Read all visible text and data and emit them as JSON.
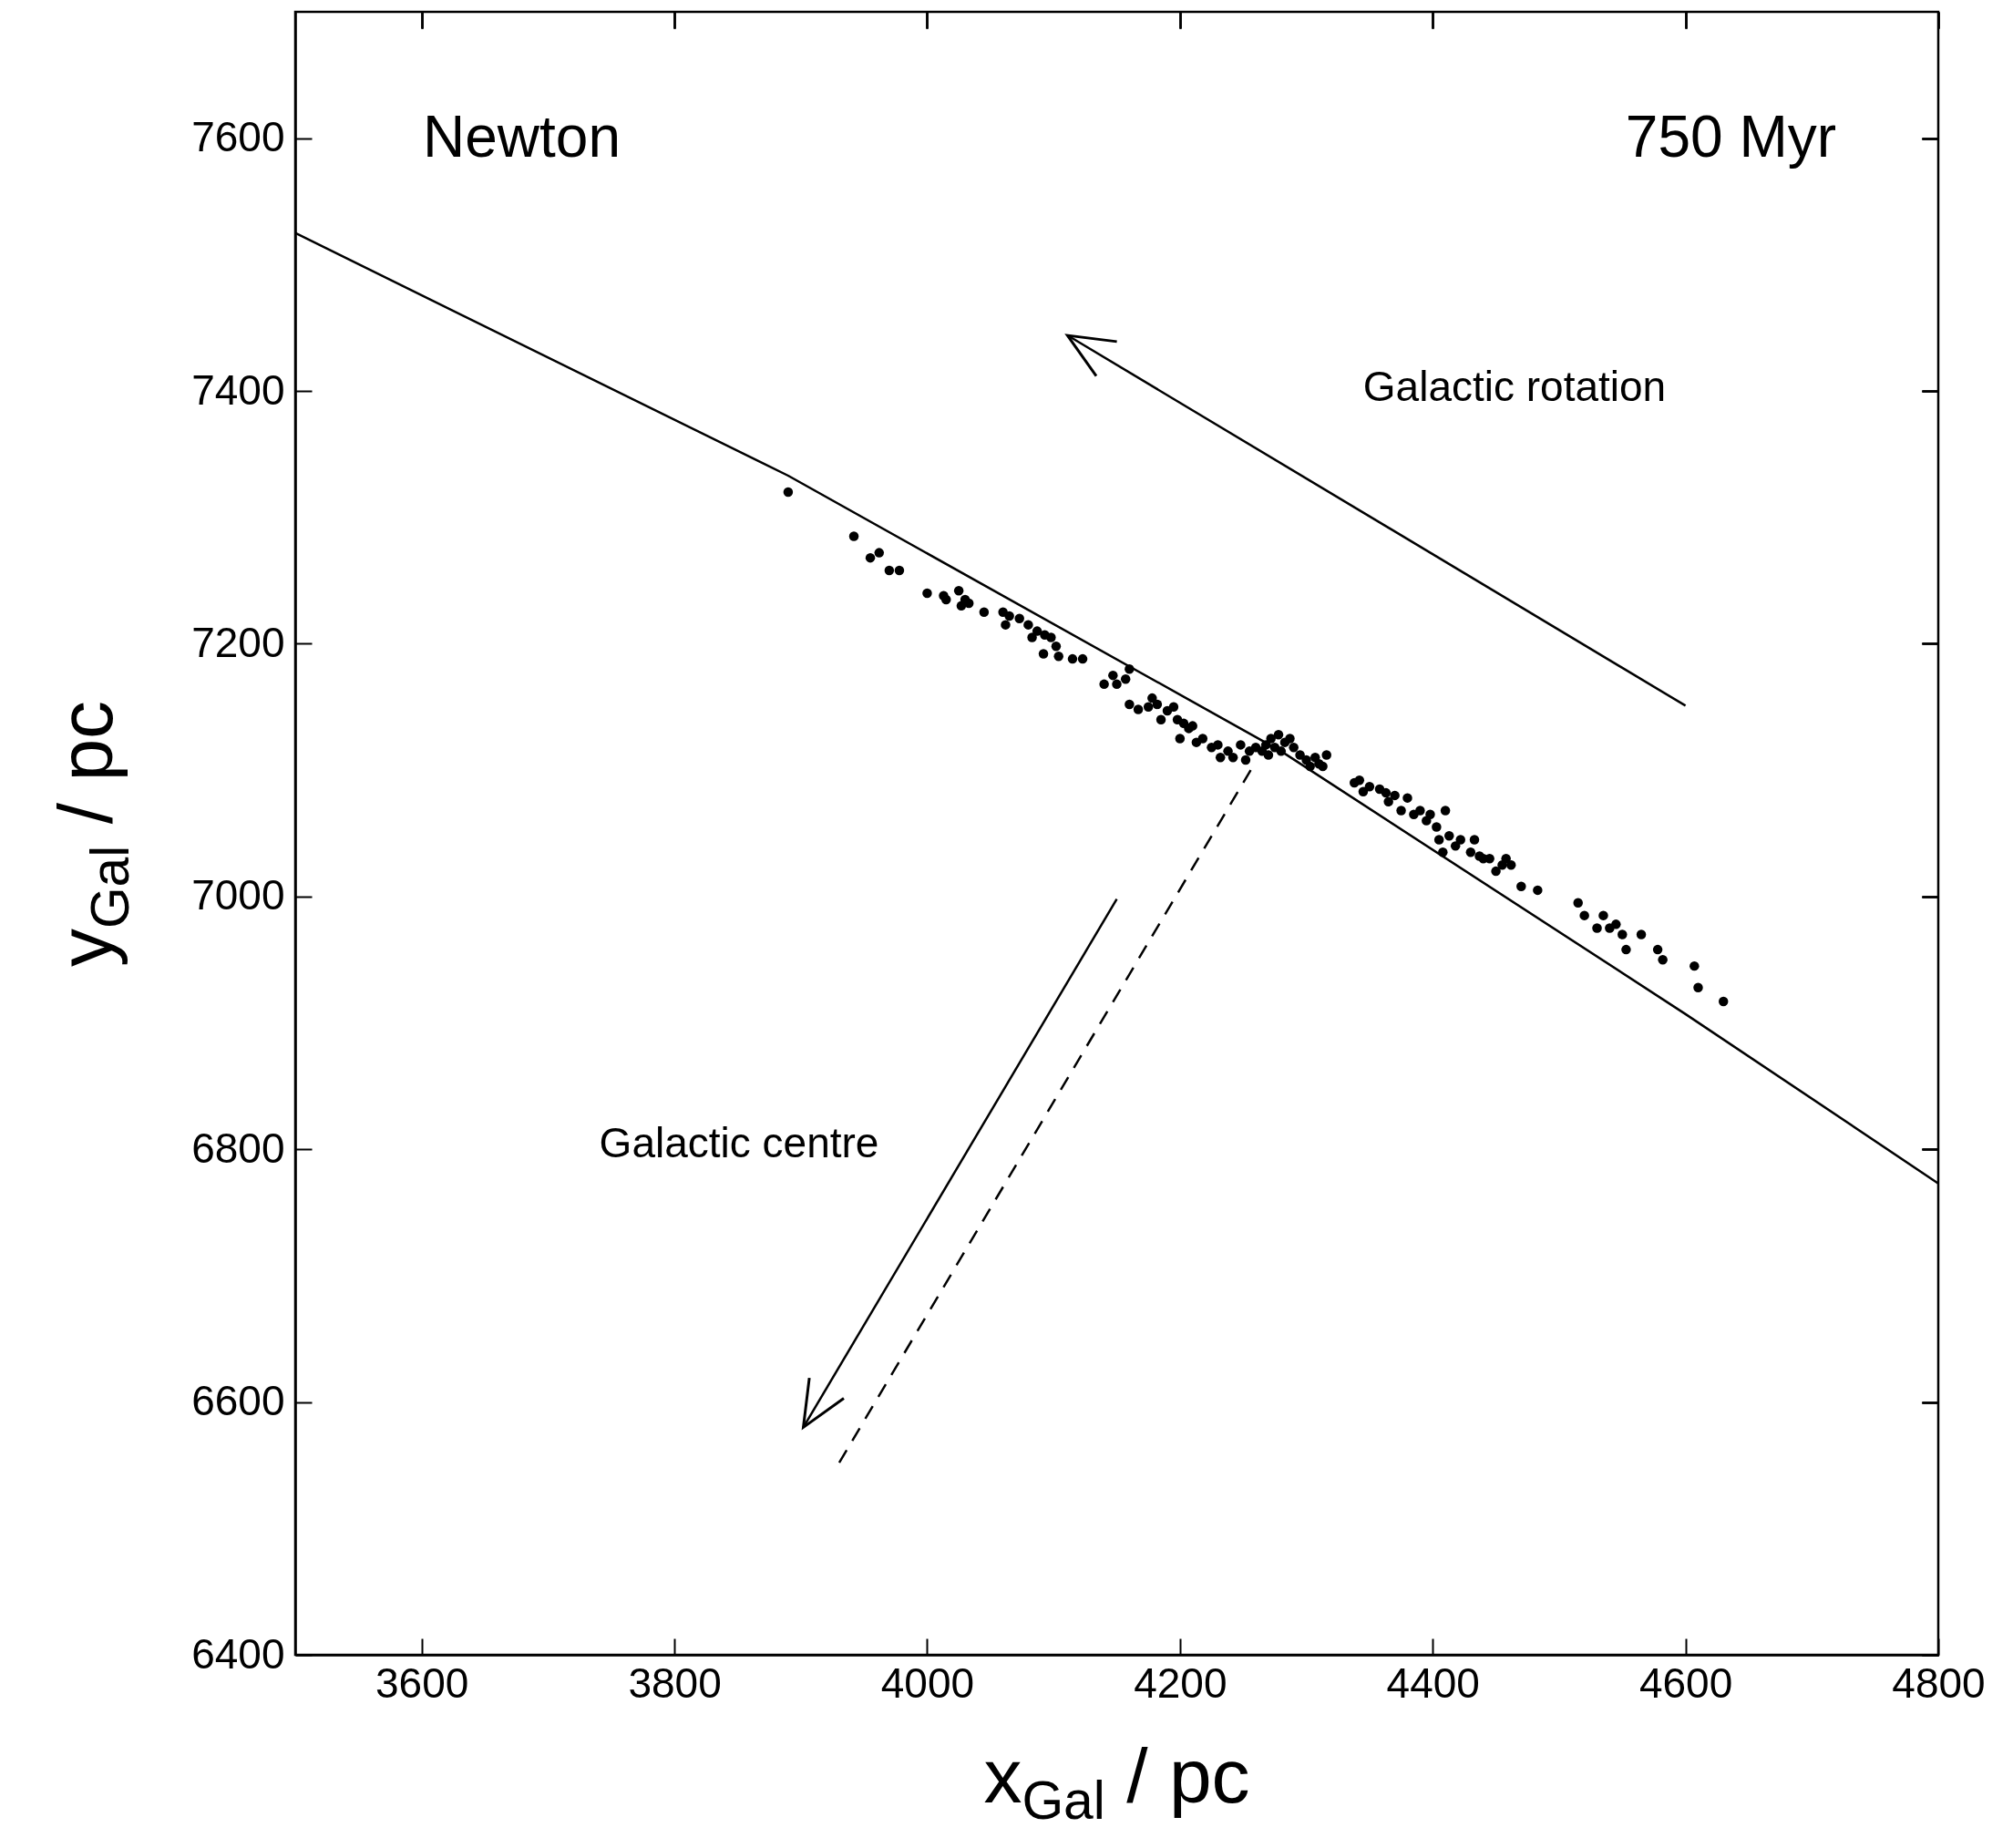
{
  "chart_data": {
    "type": "scatter",
    "xlabel": "x$_{Gal}$ / pc",
    "ylabel": "y$_{Gal}$ / pc",
    "xlim": [
      3500,
      4800
    ],
    "ylim": [
      6400,
      7700
    ],
    "xticks": [
      3600,
      3800,
      4000,
      4200,
      4400,
      4600,
      4800
    ],
    "yticks": [
      6400,
      6600,
      6800,
      7000,
      7200,
      7400,
      7600
    ],
    "grid": false,
    "annotations": [
      "Newton",
      "750 Myr",
      "Galactic rotation",
      "Galactic centre"
    ],
    "series": [
      {
        "type": "line",
        "color": "#000000",
        "marker": "none",
        "line_style": "solid",
        "x": [
          3500,
          3890,
          4280,
          4600,
          4800
        ],
        "values": [
          7525,
          7333,
          7115,
          6907,
          6773
        ]
      },
      {
        "type": "line",
        "color": "#000000",
        "marker": "none",
        "line_style": "dashed",
        "x": [
          4256,
          3928
        ],
        "values": [
          7100,
          6548
        ]
      },
      {
        "type": "line",
        "color": "#000000",
        "marker": "none",
        "line_style": "solid",
        "x": [
          4600,
          4111
        ],
        "values": [
          7151,
          7444
        ]
      },
      {
        "type": "line",
        "color": "#000000",
        "marker": "none",
        "line_style": "solid",
        "x": [
          4150,
          3902
        ],
        "values": [
          6998,
          6580
        ]
      },
      {
        "color": "#000000",
        "marker": "circle",
        "x": [
          3890,
          3942,
          3955,
          3962,
          3970,
          3978,
          4000,
          4013,
          4015,
          4025,
          4027,
          4030,
          4033,
          4045,
          4060,
          4062,
          4065,
          4073,
          4080,
          4083,
          4087,
          4092,
          4093,
          4098,
          4102,
          4104,
          4115,
          4123,
          4140,
          4147,
          4150,
          4157,
          4160,
          4160,
          4167,
          4175,
          4178,
          4182,
          4185,
          4190,
          4195,
          4198,
          4200,
          4203,
          4207,
          4210,
          4213,
          4218,
          4225,
          4230,
          4232,
          4238,
          4242,
          4248,
          4252,
          4255,
          4260,
          4265,
          4268,
          4270,
          4272,
          4275,
          4278,
          4280,
          4283,
          4287,
          4290,
          4295,
          4300,
          4303,
          4307,
          4310,
          4313,
          4316,
          4338,
          4342,
          4345,
          4350,
          4358,
          4363,
          4365,
          4370,
          4375,
          4380,
          4385,
          4390,
          4395,
          4398,
          4403,
          4405,
          4408,
          4410,
          4413,
          4418,
          4422,
          4430,
          4433,
          4437,
          4440,
          4445,
          4450,
          4455,
          4458,
          4462,
          4470,
          4483,
          4515,
          4520,
          4530,
          4535,
          4540,
          4545,
          4550,
          4553,
          4565,
          4578,
          4582,
          4607,
          4610,
          4630
        ],
        "values": [
          7320,
          7285,
          7268,
          7272,
          7258,
          7258,
          7240,
          7238,
          7235,
          7242,
          7230,
          7235,
          7232,
          7225,
          7225,
          7215,
          7222,
          7220,
          7215,
          7205,
          7210,
          7192,
          7207,
          7205,
          7198,
          7190,
          7188,
          7188,
          7168,
          7175,
          7168,
          7172,
          7180,
          7152,
          7148,
          7150,
          7157,
          7152,
          7140,
          7147,
          7150,
          7140,
          7125,
          7137,
          7133,
          7135,
          7122,
          7125,
          7118,
          7120,
          7110,
          7115,
          7110,
          7120,
          7108,
          7115,
          7118,
          7115,
          7120,
          7112,
          7125,
          7118,
          7128,
          7115,
          7122,
          7125,
          7118,
          7112,
          7108,
          7103,
          7110,
          7105,
          7103,
          7112,
          7090,
          7092,
          7083,
          7087,
          7085,
          7082,
          7075,
          7080,
          7068,
          7078,
          7065,
          7068,
          7060,
          7065,
          7055,
          7045,
          7035,
          7068,
          7048,
          7040,
          7045,
          7035,
          7045,
          7032,
          7030,
          7030,
          7020,
          7025,
          7030,
          7025,
          7008,
          7005,
          6995,
          6985,
          6975,
          6985,
          6975,
          6978,
          6970,
          6958,
          6970,
          6958,
          6950,
          6945,
          6928,
          6917
        ]
      }
    ]
  }
}
